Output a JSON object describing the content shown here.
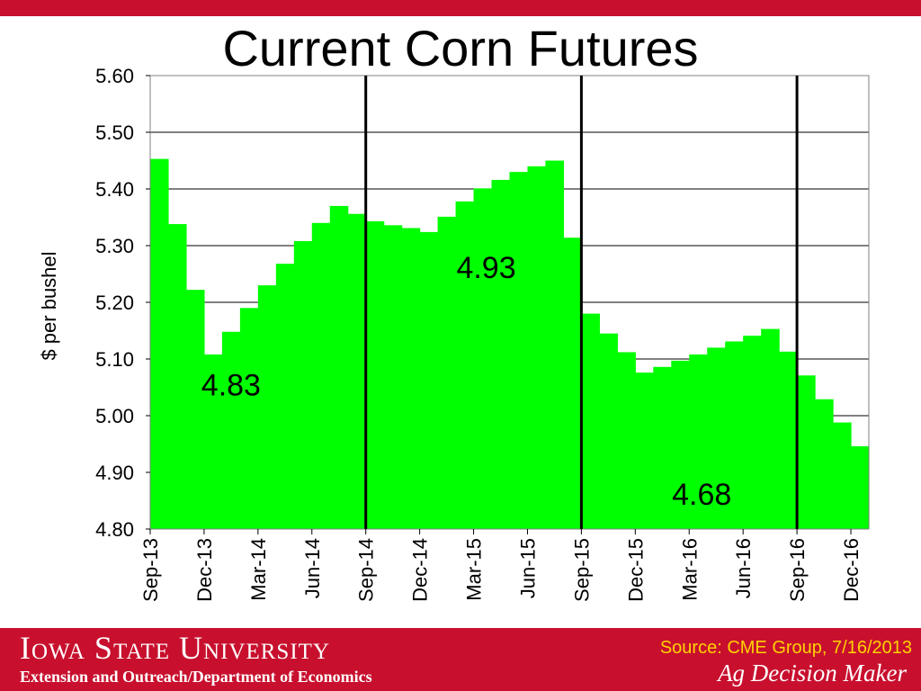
{
  "slide": {
    "title": "Current Corn Futures"
  },
  "footer": {
    "university": "Iowa State University",
    "department": "Extension and Outreach/Department of Economics",
    "source": "Source: CME Group, 7/16/2013",
    "brand": "Ag Decision Maker"
  },
  "colors": {
    "accent": "#c8102e",
    "bar_fill": "#00ff00",
    "source_text": "#ffd200"
  },
  "chart_data": {
    "type": "bar",
    "ylabel": "$ per bushel",
    "ylim": [
      4.8,
      5.6
    ],
    "yticks": [
      "4.80",
      "4.90",
      "5.00",
      "5.10",
      "5.20",
      "5.30",
      "5.40",
      "5.50",
      "5.60"
    ],
    "grid": true,
    "x_tick_labels": [
      {
        "index": 0,
        "label": "Sep-13"
      },
      {
        "index": 3,
        "label": "Dec-13"
      },
      {
        "index": 6,
        "label": "Mar-14"
      },
      {
        "index": 9,
        "label": "Jun-14"
      },
      {
        "index": 12,
        "label": "Sep-14"
      },
      {
        "index": 15,
        "label": "Dec-14"
      },
      {
        "index": 18,
        "label": "Mar-15"
      },
      {
        "index": 21,
        "label": "Jun-15"
      },
      {
        "index": 24,
        "label": "Sep-15"
      },
      {
        "index": 27,
        "label": "Dec-15"
      },
      {
        "index": 30,
        "label": "Mar-16"
      },
      {
        "index": 33,
        "label": "Jun-16"
      },
      {
        "index": 36,
        "label": "Sep-16"
      },
      {
        "index": 39,
        "label": "Dec-16"
      }
    ],
    "values": [
      5.453,
      5.338,
      5.222,
      5.108,
      5.148,
      5.19,
      5.23,
      5.268,
      5.308,
      5.34,
      5.37,
      5.356,
      5.343,
      5.336,
      5.331,
      5.324,
      5.351,
      5.378,
      5.401,
      5.416,
      5.43,
      5.44,
      5.45,
      5.314,
      5.18,
      5.145,
      5.112,
      5.076,
      5.086,
      5.097,
      5.108,
      5.12,
      5.131,
      5.141,
      5.153,
      5.113,
      5.071,
      5.029,
      4.988,
      4.946
    ],
    "dividers_before_index": [
      12,
      24,
      36
    ],
    "annotations": [
      {
        "text": "4.83",
        "index": 4.5,
        "y": 5.036
      },
      {
        "text": "4.93",
        "index": 18.7,
        "y": 5.243
      },
      {
        "text": "4.68",
        "index": 30.7,
        "y": 4.843
      }
    ]
  }
}
